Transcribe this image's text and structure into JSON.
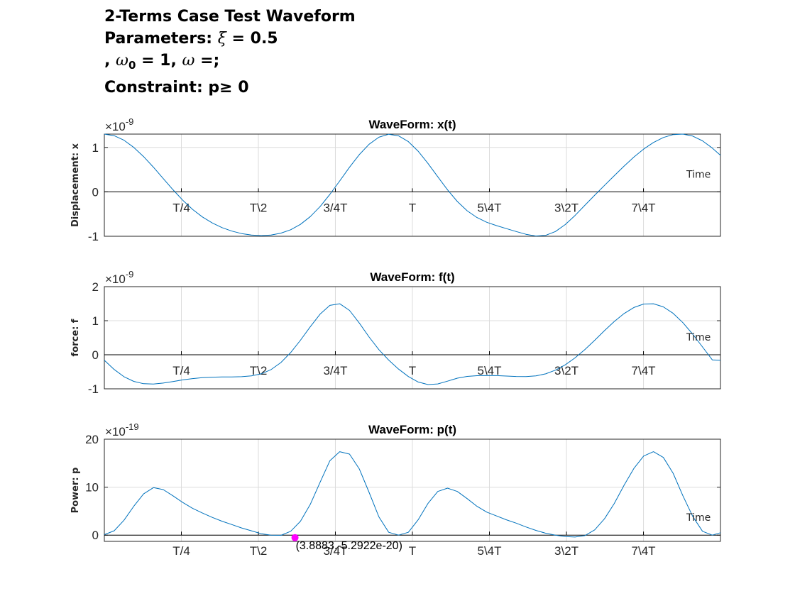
{
  "figure": {
    "title_line1": "2-Terms Case Test Waveform",
    "title_line2_prefix": "Parameters: ",
    "xi_symbol": "ξ",
    "title_line2_suffix": " = 0.5",
    "title_line3_prefix": ", ",
    "omega_symbol": "ω",
    "omega_sub": "0",
    "title_line3_mid": " = 1, ",
    "title_line3_suffix": " =;",
    "title_line4_prefix": "Constraint: p",
    "geq_symbol": "≥",
    "title_line4_suffix": " 0"
  },
  "colors": {
    "line": "#0072BD",
    "grid": "#dcdcdc",
    "axis": "#262626",
    "marker": "#ff00ff"
  },
  "chart_data": [
    {
      "type": "line",
      "title": "WaveForm: x(t)",
      "ylabel": "Displacement: x",
      "x_annotation": "Time",
      "exponent_label": "×10",
      "exponent": "-9",
      "xlim": [
        0,
        12.566
      ],
      "ylim": [
        -1,
        1.3
      ],
      "yticks": [
        -1,
        0,
        1
      ],
      "ytick_labels": [
        "-1",
        "0",
        "1"
      ],
      "xtick_positions": [
        1.571,
        3.142,
        4.712,
        6.283,
        7.854,
        9.425,
        10.996
      ],
      "xtick_labels": [
        "T/4",
        "T\\2",
        "3/4T",
        "T",
        "5\\4T",
        "3\\2T",
        "7\\4T"
      ],
      "x": [
        0,
        0.2,
        0.4,
        0.6,
        0.8,
        1,
        1.2,
        1.4,
        1.6,
        1.8,
        2,
        2.2,
        2.4,
        2.6,
        2.8,
        3,
        3.2,
        3.4,
        3.6,
        3.8,
        4,
        4.2,
        4.4,
        4.6,
        4.8,
        5,
        5.2,
        5.4,
        5.6,
        5.8,
        6,
        6.2,
        6.4,
        6.6,
        6.8,
        7,
        7.2,
        7.4,
        7.6,
        7.8,
        8,
        8.2,
        8.4,
        8.6,
        8.8,
        9,
        9.2,
        9.4,
        9.6,
        9.8,
        10,
        10.2,
        10.4,
        10.6,
        10.8,
        11,
        11.2,
        11.4,
        11.6,
        11.8,
        12,
        12.2,
        12.4,
        12.566
      ],
      "series": [
        {
          "values": [
            1.3,
            1.265,
            1.162,
            1.001,
            0.794,
            0.555,
            0.3,
            0.047,
            -0.189,
            -0.395,
            -0.565,
            -0.7,
            -0.805,
            -0.884,
            -0.939,
            -0.973,
            -0.985,
            -0.972,
            -0.93,
            -0.853,
            -0.731,
            -0.558,
            -0.332,
            -0.057,
            0.246,
            0.554,
            0.838,
            1.071,
            1.23,
            1.297,
            1.262,
            1.13,
            0.915,
            0.641,
            0.34,
            0.044,
            -0.217,
            -0.426,
            -0.579,
            -0.685,
            -0.761,
            -0.827,
            -0.893,
            -0.955,
            -0.994,
            -0.979,
            -0.893,
            -0.737,
            -0.532,
            -0.304,
            -0.075,
            0.146,
            0.364,
            0.579,
            0.782,
            0.963,
            1.112,
            1.224,
            1.289,
            1.3,
            1.255,
            1.148,
            0.985,
            0.823
          ]
        }
      ]
    },
    {
      "type": "line",
      "title": "WaveForm: f(t)",
      "ylabel": "force: f",
      "x_annotation": "Time",
      "exponent_label": "×10",
      "exponent": "-9",
      "xlim": [
        0,
        12.566
      ],
      "ylim": [
        -1,
        2
      ],
      "yticks": [
        -1,
        0,
        1,
        2
      ],
      "ytick_labels": [
        "-1",
        "0",
        "1",
        "2"
      ],
      "xtick_positions": [
        1.571,
        3.142,
        4.712,
        6.283,
        7.854,
        9.425,
        10.996
      ],
      "xtick_labels": [
        "T/4",
        "T\\2",
        "3/4T",
        "T",
        "5\\4T",
        "3\\2T",
        "7\\4T"
      ],
      "x": [
        0,
        0.2,
        0.4,
        0.6,
        0.8,
        1,
        1.2,
        1.4,
        1.6,
        1.8,
        2,
        2.2,
        2.4,
        2.6,
        2.8,
        3,
        3.2,
        3.4,
        3.6,
        3.8,
        4,
        4.2,
        4.4,
        4.6,
        4.8,
        5,
        5.2,
        5.4,
        5.6,
        5.8,
        6,
        6.2,
        6.4,
        6.6,
        6.8,
        7,
        7.2,
        7.4,
        7.6,
        7.8,
        8,
        8.2,
        8.4,
        8.6,
        8.8,
        9,
        9.2,
        9.4,
        9.6,
        9.8,
        10,
        10.2,
        10.4,
        10.6,
        10.8,
        11,
        11.2,
        11.4,
        11.6,
        11.8,
        12,
        12.2,
        12.4,
        12.566
      ],
      "series": [
        {
          "values": [
            -0.16,
            -0.432,
            -0.643,
            -0.781,
            -0.849,
            -0.86,
            -0.832,
            -0.786,
            -0.738,
            -0.7,
            -0.673,
            -0.658,
            -0.652,
            -0.65,
            -0.643,
            -0.62,
            -0.56,
            -0.435,
            -0.229,
            0.064,
            0.427,
            0.821,
            1.191,
            1.45,
            1.498,
            1.302,
            0.932,
            0.521,
            0.151,
            -0.157,
            -0.42,
            -0.64,
            -0.8,
            -0.874,
            -0.857,
            -0.775,
            -0.688,
            -0.636,
            -0.614,
            -0.609,
            -0.612,
            -0.625,
            -0.638,
            -0.641,
            -0.62,
            -0.56,
            -0.452,
            -0.295,
            -0.092,
            0.152,
            0.425,
            0.708,
            0.977,
            1.21,
            1.388,
            1.49,
            1.498,
            1.406,
            1.216,
            0.942,
            0.604,
            0.23,
            -0.15,
            -0.16
          ]
        }
      ]
    },
    {
      "type": "line",
      "title": "WaveForm: p(t)",
      "ylabel": "Power: p",
      "x_annotation": "Time",
      "exponent_label": "×10",
      "exponent": "-19",
      "xlim": [
        0,
        12.566
      ],
      "ylim": [
        -1.3,
        20
      ],
      "yticks": [
        0,
        10,
        20
      ],
      "ytick_labels": [
        "0",
        "10",
        "20"
      ],
      "xtick_positions": [
        1.571,
        3.142,
        4.712,
        6.283,
        7.854,
        9.425,
        10.996
      ],
      "xtick_labels": [
        "T/4",
        "T\\2",
        "3/4T",
        "T",
        "5\\4T",
        "3\\2T",
        "7\\4T"
      ],
      "x": [
        0,
        0.2,
        0.4,
        0.6,
        0.8,
        1,
        1.2,
        1.4,
        1.6,
        1.8,
        2,
        2.2,
        2.4,
        2.6,
        2.8,
        3,
        3.2,
        3.4,
        3.6,
        3.8,
        4,
        4.2,
        4.4,
        4.6,
        4.8,
        5,
        5.2,
        5.4,
        5.6,
        5.8,
        6,
        6.2,
        6.4,
        6.6,
        6.8,
        7,
        7.2,
        7.4,
        7.6,
        7.8,
        8,
        8.2,
        8.4,
        8.6,
        8.8,
        9,
        9.2,
        9.4,
        9.6,
        9.8,
        10,
        10.2,
        10.4,
        10.6,
        10.8,
        11,
        11.2,
        11.4,
        11.6,
        11.8,
        12,
        12.2,
        12.4,
        12.566
      ],
      "series": [
        {
          "values": [
            0.1,
            0.9,
            3.1,
            6.0,
            8.6,
            9.9,
            9.5,
            8.2,
            6.8,
            5.6,
            4.6,
            3.7,
            2.9,
            2.2,
            1.5,
            0.9,
            0.3,
            0.0,
            -0.05,
            0.8,
            2.9,
            6.4,
            11.0,
            15.5,
            17.4,
            16.9,
            13.8,
            8.9,
            3.8,
            0.6,
            0.0,
            0.6,
            3.2,
            6.6,
            9.1,
            9.8,
            9.1,
            7.6,
            6.0,
            4.8,
            4.0,
            3.2,
            2.5,
            1.7,
            1.0,
            0.4,
            0.0,
            -0.3,
            -0.4,
            -0.1,
            1.1,
            3.4,
            6.6,
            10.4,
            13.9,
            16.5,
            17.4,
            16.2,
            12.9,
            8.2,
            3.9,
            0.8,
            0.0,
            0.5
          ]
        }
      ],
      "datatip": {
        "x": 3.8883,
        "y": -0.52922,
        "label": "(3.8883,-5.2922e-20)"
      }
    }
  ]
}
